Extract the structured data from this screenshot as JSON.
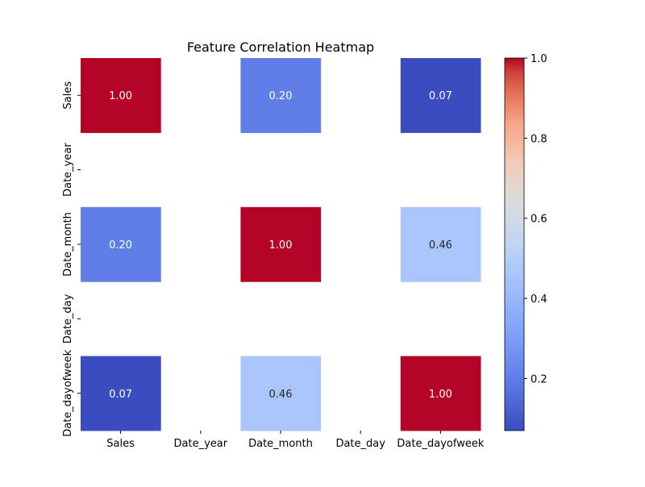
{
  "chart_data": {
    "type": "heatmap",
    "title": "Feature Correlation Heatmap",
    "x_labels": [
      "Sales",
      "Date_year",
      "Date_month",
      "Date_day",
      "Date_dayofweek"
    ],
    "y_labels": [
      "Sales",
      "Date_year",
      "Date_month",
      "Date_day",
      "Date_dayofweek"
    ],
    "values": [
      [
        1.0,
        null,
        0.2,
        null,
        0.07
      ],
      [
        null,
        null,
        null,
        null,
        null
      ],
      [
        0.2,
        null,
        1.0,
        null,
        0.46
      ],
      [
        null,
        null,
        null,
        null,
        null
      ],
      [
        0.07,
        null,
        0.46,
        null,
        1.0
      ]
    ],
    "cell_labels": [
      [
        "1.00",
        "",
        "0.20",
        "",
        "0.07"
      ],
      [
        "",
        "",
        "",
        "",
        ""
      ],
      [
        "0.20",
        "",
        "1.00",
        "",
        "0.46"
      ],
      [
        "",
        "",
        "",
        "",
        ""
      ],
      [
        "0.07",
        "",
        "0.46",
        "",
        "1.00"
      ]
    ],
    "colormap": "coolwarm",
    "vmin": 0.07,
    "vmax": 1.0,
    "colorbar": {
      "ticks": [
        0.2,
        0.4,
        0.6,
        0.8,
        1.0
      ],
      "tick_labels": [
        "0.2",
        "0.4",
        "0.6",
        "0.8",
        "1.0"
      ]
    },
    "grid": false,
    "xlabel": "",
    "ylabel": ""
  }
}
